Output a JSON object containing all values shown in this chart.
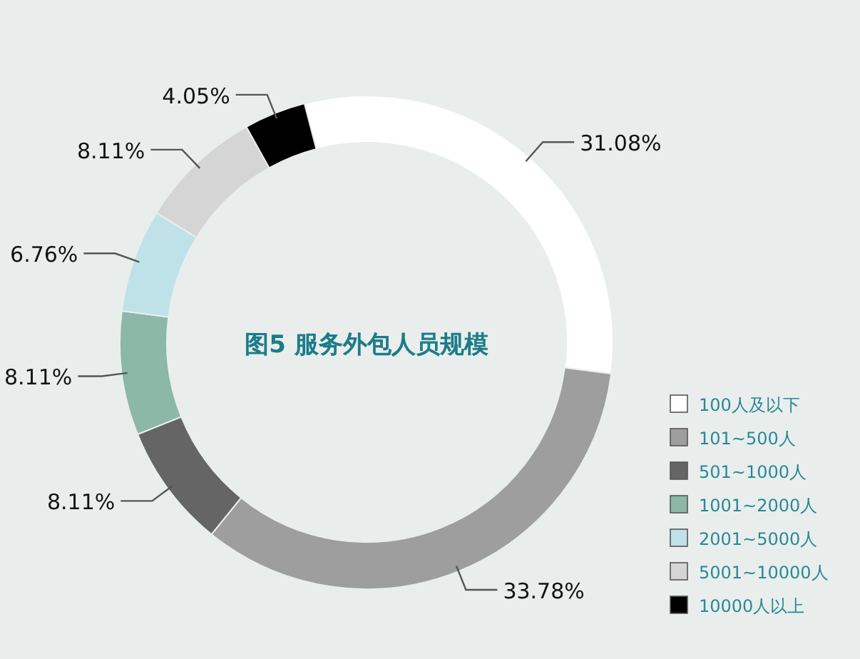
{
  "chart_data": {
    "type": "donut",
    "title": "图5 服务外包人员规模",
    "categories": [
      "100人及以下",
      "101~500人",
      "501~1000人",
      "1001~2000人",
      "2001~5000人",
      "5001~10000人",
      "10000人以上"
    ],
    "values": [
      31.08,
      33.78,
      8.11,
      8.11,
      6.76,
      8.11,
      4.05
    ],
    "colors": [
      "#ffffff",
      "#9e9e9e",
      "#656565",
      "#8bb8a7",
      "#bfe2e8",
      "#d5d5d5",
      "#000000"
    ],
    "value_labels": [
      "31.08%",
      "33.78%",
      "8.11%",
      "8.11%",
      "6.76%",
      "8.11%",
      "4.05%"
    ],
    "legend": "bottom right"
  }
}
